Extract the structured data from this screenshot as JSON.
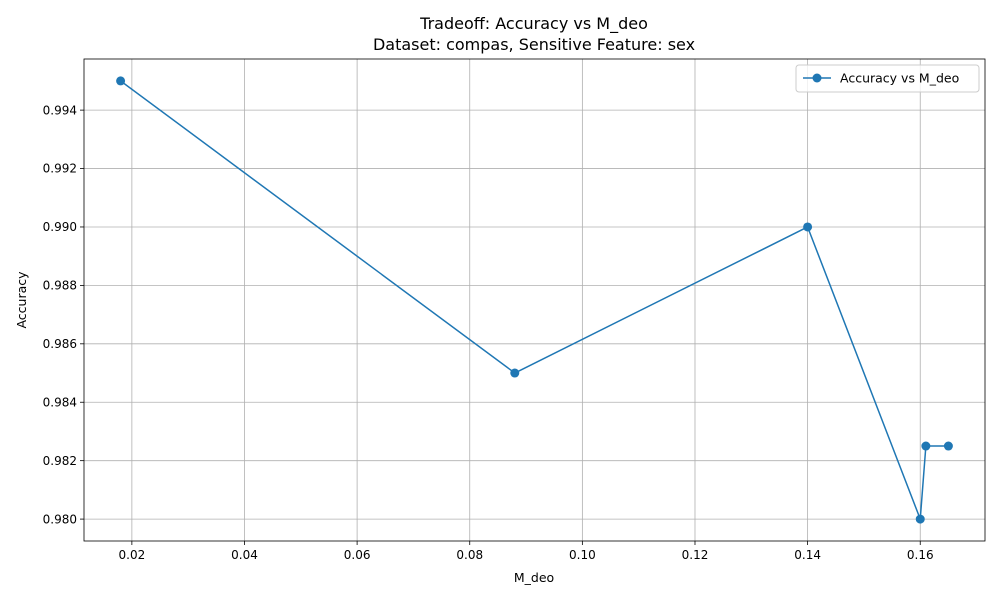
{
  "chart_data": {
    "type": "line",
    "title": "Tradeoff: Accuracy vs M_deo",
    "subtitle": "Dataset: compas, Sensitive Feature: sex",
    "xlabel": "M_deo",
    "ylabel": "Accuracy",
    "xlim": [
      0.0115,
      0.1715
    ],
    "ylim": [
      0.97925,
      0.99575
    ],
    "xticks": [
      "0.02",
      "0.04",
      "0.06",
      "0.08",
      "0.10",
      "0.12",
      "0.14",
      "0.16"
    ],
    "xtick_values": [
      0.02,
      0.04,
      0.06,
      0.08,
      0.1,
      0.12,
      0.14,
      0.16
    ],
    "yticks": [
      "0.980",
      "0.982",
      "0.984",
      "0.986",
      "0.988",
      "0.990",
      "0.992",
      "0.994"
    ],
    "ytick_values": [
      0.98,
      0.982,
      0.984,
      0.986,
      0.988,
      0.99,
      0.992,
      0.994
    ],
    "grid": true,
    "legend_position": "top-right",
    "series": [
      {
        "name": "Accuracy vs M_deo",
        "color": "#1f77b4",
        "marker": "circle",
        "x": [
          0.018,
          0.088,
          0.14,
          0.16,
          0.161,
          0.165
        ],
        "y": [
          0.995,
          0.985,
          0.99,
          0.98,
          0.9825,
          0.9825
        ]
      }
    ]
  }
}
